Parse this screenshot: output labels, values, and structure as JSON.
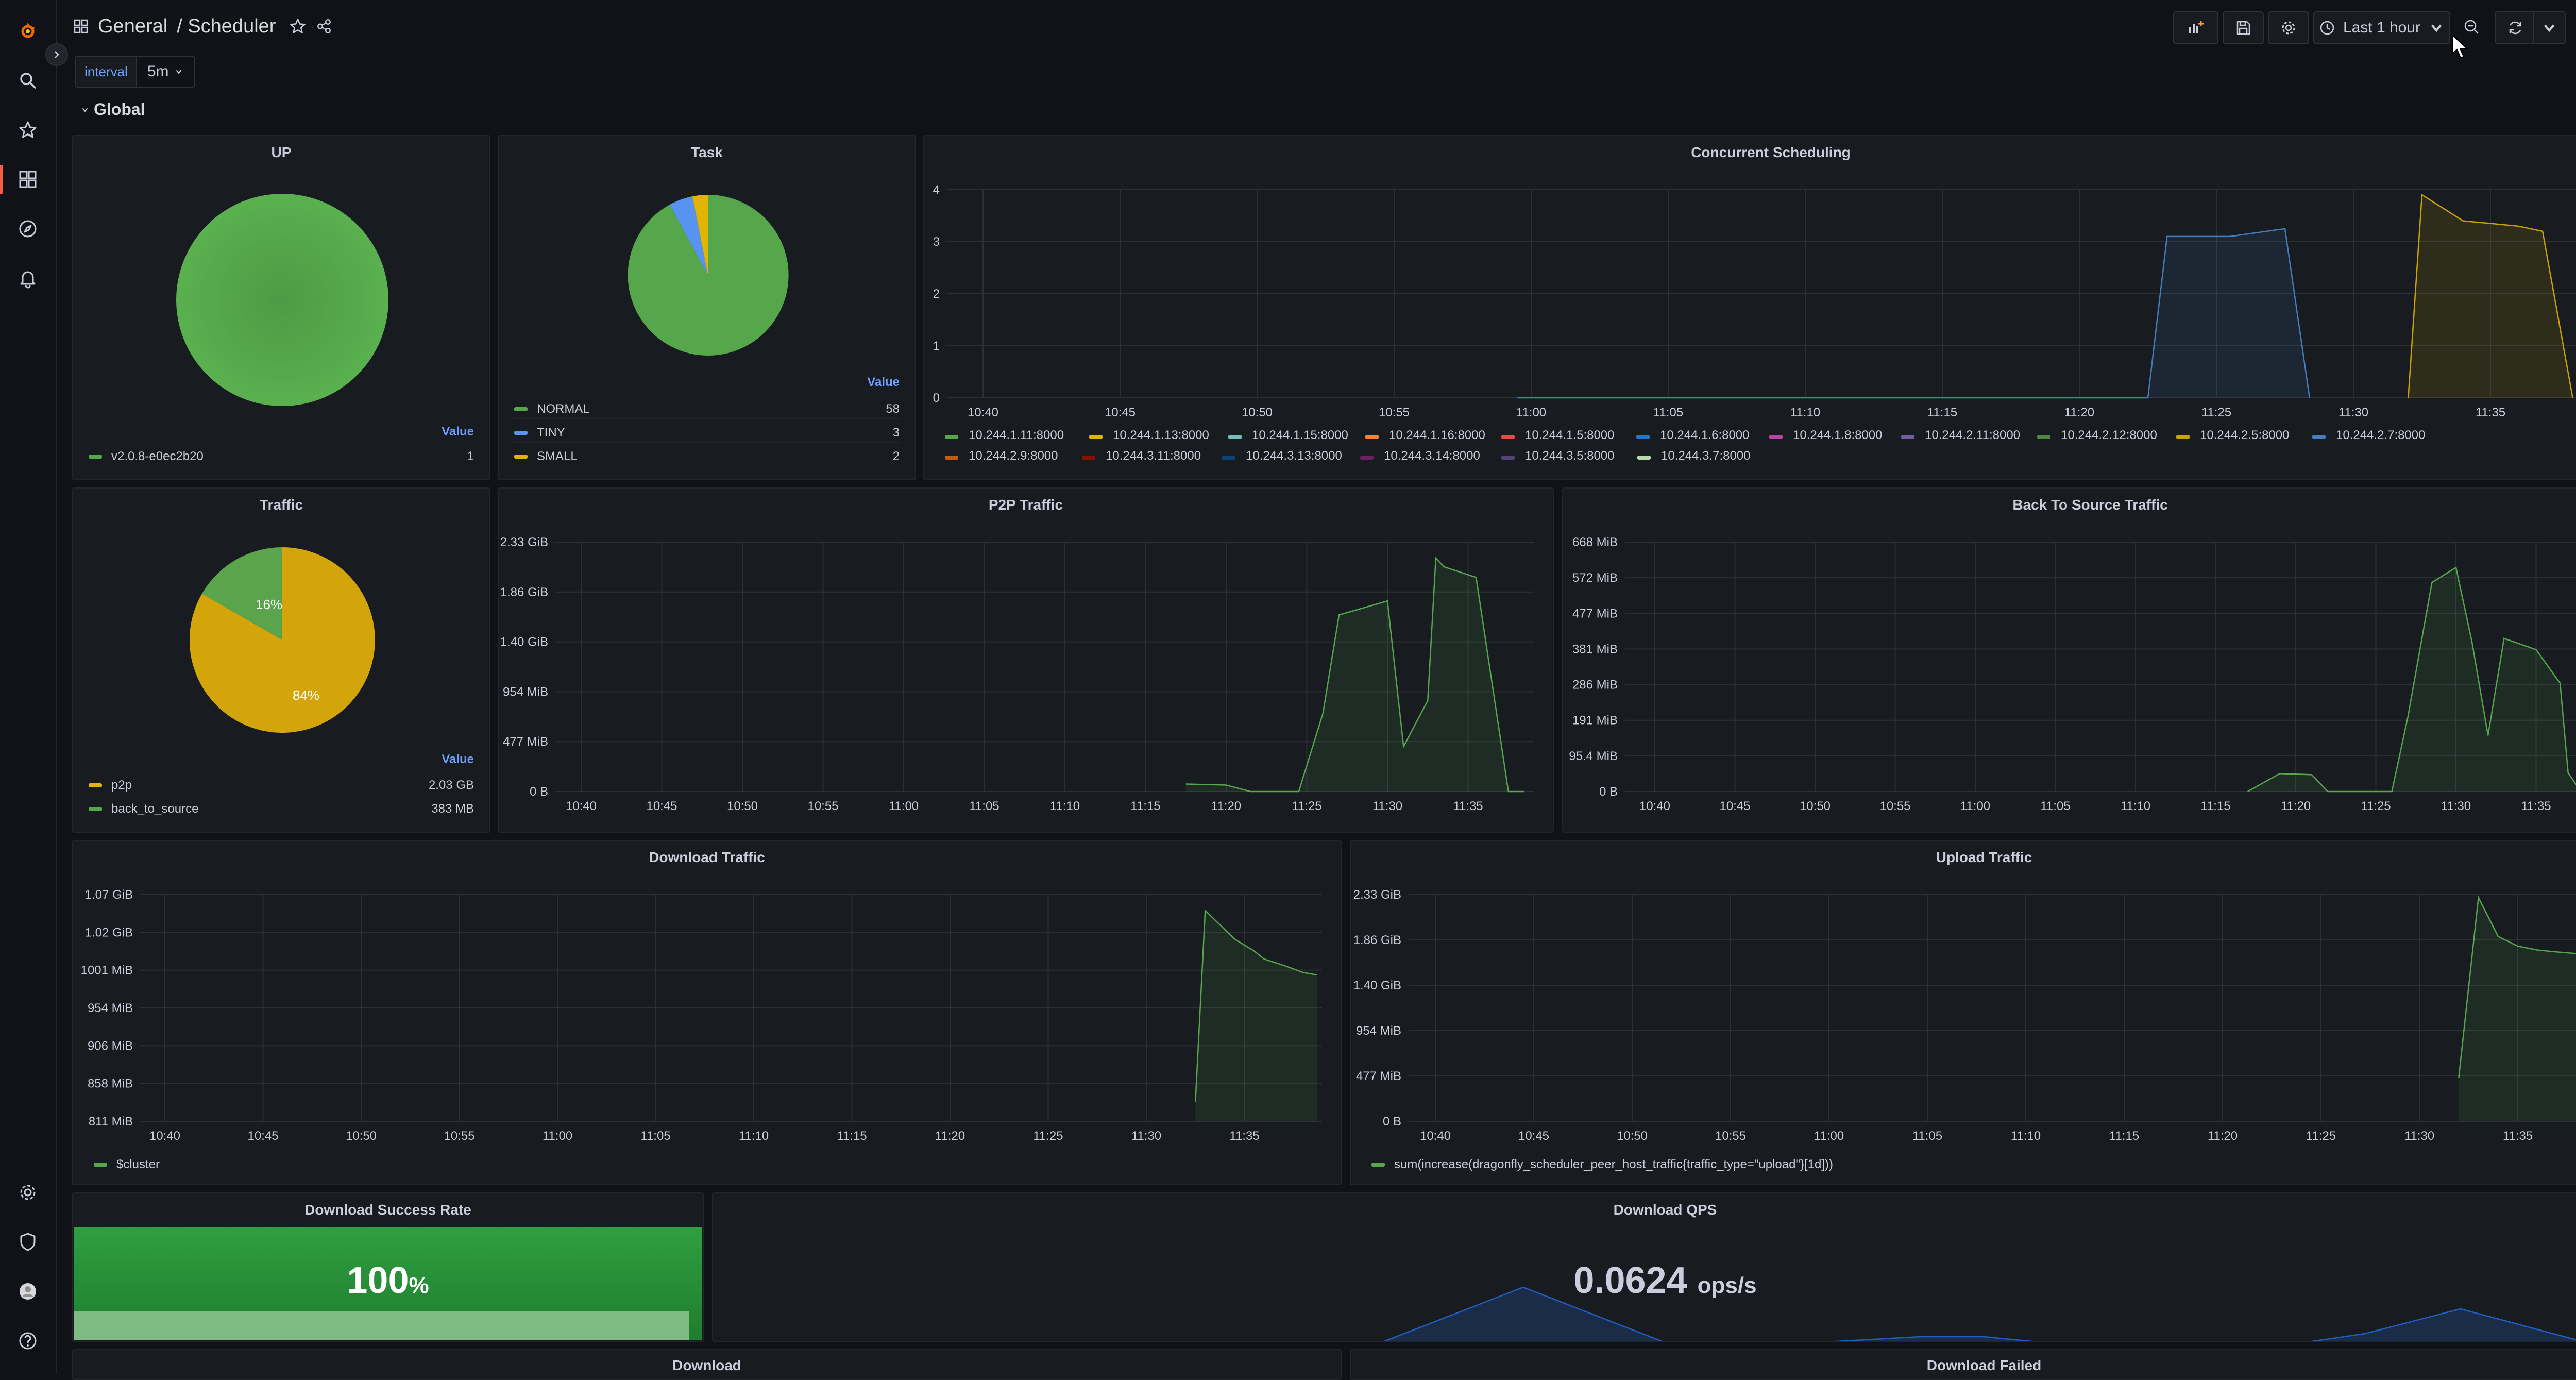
{
  "header": {
    "folder": "General",
    "dashboard": "/ Scheduler",
    "time_range": "Last 1 hour"
  },
  "variables": {
    "label": "interval",
    "value": "5m"
  },
  "row": {
    "title": "Global"
  },
  "panels": {
    "up": {
      "title": "UP",
      "value_header": "Value",
      "legend": [
        {
          "name": "v2.0.8-e0ec2b20",
          "value": "1",
          "color": "#56a64b"
        }
      ]
    },
    "task": {
      "title": "Task",
      "value_header": "Value",
      "legend": [
        {
          "name": "NORMAL",
          "value": "58",
          "color": "#56a64b"
        },
        {
          "name": "TINY",
          "value": "3",
          "color": "#5794f2"
        },
        {
          "name": "SMALL",
          "value": "2",
          "color": "#e0b400"
        }
      ]
    },
    "traffic": {
      "title": "Traffic",
      "value_header": "Value",
      "slice_labels": [
        "16%",
        "84%"
      ],
      "legend": [
        {
          "name": "p2p",
          "value": "2.03 GB",
          "color": "#e0b400"
        },
        {
          "name": "back_to_source",
          "value": "383 MB",
          "color": "#56a64b"
        }
      ]
    },
    "concurrent": {
      "title": "Concurrent Scheduling",
      "legend": [
        {
          "name": "10.244.1.11:8000",
          "color": "#56a64b"
        },
        {
          "name": "10.244.1.13:8000",
          "color": "#e0b400"
        },
        {
          "name": "10.244.1.15:8000",
          "color": "#73bfb8"
        },
        {
          "name": "10.244.1.16:8000",
          "color": "#ef843c"
        },
        {
          "name": "10.244.1.5:8000",
          "color": "#e24d42"
        },
        {
          "name": "10.244.1.6:8000",
          "color": "#1f78c1"
        },
        {
          "name": "10.244.1.8:8000",
          "color": "#ba43a9"
        },
        {
          "name": "10.244.2.11:8000",
          "color": "#705da0"
        },
        {
          "name": "10.244.2.12:8000",
          "color": "#508642"
        },
        {
          "name": "10.244.2.5:8000",
          "color": "#cca300"
        },
        {
          "name": "10.244.2.7:8000",
          "color": "#447ebc"
        },
        {
          "name": "10.244.2.9:8000",
          "color": "#c15c17"
        },
        {
          "name": "10.244.3.11:8000",
          "color": "#890f02"
        },
        {
          "name": "10.244.3.13:8000",
          "color": "#0a437c"
        },
        {
          "name": "10.244.3.14:8000",
          "color": "#6d1f62"
        },
        {
          "name": "10.244.3.5:8000",
          "color": "#584477"
        },
        {
          "name": "10.244.3.7:8000",
          "color": "#b7dbab"
        }
      ]
    },
    "p2p": {
      "title": "P2P Traffic"
    },
    "bts": {
      "title": "Back To Source Traffic"
    },
    "download": {
      "title": "Download Traffic",
      "legend": [
        {
          "name": "$cluster",
          "color": "#56a64b"
        }
      ]
    },
    "upload": {
      "title": "Upload Traffic",
      "legend": [
        {
          "name": "sum(increase(dragonfly_scheduler_peer_host_traffic{traffic_type=\"upload\"}[1d]))",
          "color": "#56a64b"
        }
      ]
    },
    "success_rate": {
      "title": "Download Success Rate",
      "value": "100",
      "unit": "%"
    },
    "qps": {
      "title": "Download QPS",
      "value": "0.0624",
      "unit": "ops/s"
    },
    "download_bottom": {
      "title": "Download"
    },
    "download_failed": {
      "title": "Download Failed"
    }
  },
  "chart_data": [
    {
      "id": "concurrent",
      "type": "area",
      "title": "Concurrent Scheduling",
      "x_ticks": [
        "10:40",
        "10:45",
        "10:50",
        "10:55",
        "11:00",
        "11:05",
        "11:10",
        "11:15",
        "11:20",
        "11:25",
        "11:30",
        "11:35"
      ],
      "y_ticks": [
        "0",
        "1",
        "2",
        "3",
        "4"
      ],
      "ylim": [
        0,
        4
      ],
      "series": [
        {
          "name": "10.244.2.7:8000",
          "color": "#447ebc",
          "x_min": [
            19.5,
            22.2,
            24.5,
            29.2,
            30.5,
            32.3,
            35.0,
            38.0,
            42.5,
            43.2,
            45.5,
            47.5,
            48.4
          ],
          "y": [
            0,
            0,
            0,
            0,
            0,
            0,
            0,
            0,
            0,
            3.1,
            3.1,
            3.25,
            0
          ]
        },
        {
          "name": "10.244.2.5:8000",
          "color": "#cca300",
          "x_min": [
            52.0,
            52.5,
            54.0,
            56.0,
            56.9,
            58.0
          ],
          "y": [
            0,
            3.9,
            3.4,
            3.3,
            3.2,
            0
          ]
        }
      ]
    },
    {
      "id": "p2p",
      "type": "area",
      "title": "P2P Traffic",
      "x_ticks": [
        "10:40",
        "10:45",
        "10:50",
        "10:55",
        "11:00",
        "11:05",
        "11:10",
        "11:15",
        "11:20",
        "11:25",
        "11:30",
        "11:35"
      ],
      "y_ticks": [
        "0 B",
        "477 MiB",
        "954 MiB",
        "1.40 GiB",
        "1.86 GiB",
        "2.33 GiB"
      ],
      "ylim": [
        0,
        2.33
      ],
      "series": [
        {
          "name": "p2p",
          "color": "#56a64b",
          "x_min": [
            37.5,
            40.0,
            41.5,
            44.5,
            46.0,
            47.0,
            50.0,
            51.0,
            52.5,
            53.0,
            53.5,
            55.5,
            57.5,
            58.5
          ],
          "y": [
            0.07,
            0.06,
            0.0,
            0.0,
            0.73,
            1.65,
            1.78,
            0.42,
            0.85,
            2.18,
            2.1,
            2.0,
            0.0,
            0.0
          ]
        }
      ]
    },
    {
      "id": "bts",
      "type": "area",
      "title": "Back To Source Traffic",
      "x_ticks": [
        "10:40",
        "10:45",
        "10:50",
        "10:55",
        "11:00",
        "11:05",
        "11:10",
        "11:15",
        "11:20",
        "11:25",
        "11:30",
        "11:35"
      ],
      "y_ticks": [
        "0 B",
        "95.4 MiB",
        "191 MiB",
        "286 MiB",
        "381 MiB",
        "477 MiB",
        "572 MiB",
        "668 MiB"
      ],
      "ylim": [
        0,
        668
      ],
      "series": [
        {
          "name": "back_to_source",
          "color": "#56a64b",
          "x_min": [
            37.0,
            39.0,
            41.0,
            42.0,
            46.0,
            47.0,
            48.5,
            50.0,
            51.0,
            52.0,
            53.0,
            55.0,
            56.5,
            57.0,
            57.8
          ],
          "y": [
            0,
            48,
            45,
            0,
            0,
            200,
            560,
            600,
            400,
            150,
            410,
            380,
            290,
            50,
            0
          ]
        }
      ]
    },
    {
      "id": "download",
      "type": "area",
      "title": "Download Traffic",
      "x_ticks": [
        "10:40",
        "10:45",
        "10:50",
        "10:55",
        "11:00",
        "11:05",
        "11:10",
        "11:15",
        "11:20",
        "11:25",
        "11:30",
        "11:35"
      ],
      "y_ticks": [
        "811 MiB",
        "858 MiB",
        "906 MiB",
        "954 MiB",
        "1001 MiB",
        "1.02 GiB",
        "1.07 GiB"
      ],
      "ylim": [
        811,
        1096
      ],
      "series": [
        {
          "name": "$cluster",
          "color": "#56a64b",
          "x_min": [
            52.5,
            53.0,
            54.5,
            55.5,
            56.0,
            57.0,
            58.0,
            58.7
          ],
          "y": [
            835,
            1076,
            1040,
            1025,
            1015,
            1007,
            998,
            995
          ]
        }
      ]
    },
    {
      "id": "upload",
      "type": "area",
      "title": "Upload Traffic",
      "x_ticks": [
        "10:40",
        "10:45",
        "10:50",
        "10:55",
        "11:00",
        "11:05",
        "11:10",
        "11:15",
        "11:20",
        "11:25",
        "11:30",
        "11:35"
      ],
      "y_ticks": [
        "0 B",
        "477 MiB",
        "954 MiB",
        "1.40 GiB",
        "1.86 GiB",
        "2.33 GiB"
      ],
      "ylim": [
        0,
        2.33
      ],
      "series": [
        {
          "name": "upload",
          "color": "#56a64b",
          "x_min": [
            52.0,
            53.0,
            54.0,
            55.0,
            56.0,
            57.0,
            58.2
          ],
          "y": [
            0.45,
            2.3,
            1.9,
            1.8,
            1.76,
            1.74,
            1.72
          ]
        }
      ]
    },
    {
      "id": "qps",
      "type": "area",
      "title": "Download QPS",
      "x_min": [
        0,
        21.0,
        25.5,
        30.0,
        34.5,
        38.0,
        40.0,
        42.0,
        50.0,
        52.0,
        55.0,
        59.0,
        60.0
      ],
      "y": [
        0,
        0,
        0.9,
        0,
        0,
        0.1,
        0.1,
        0,
        0,
        0.15,
        0.55,
        0,
        0
      ]
    }
  ]
}
